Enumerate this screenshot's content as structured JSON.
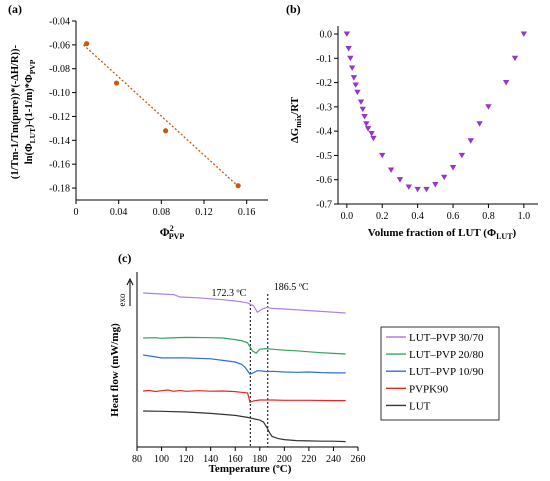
{
  "chart_data": [
    {
      "panel": "(a)",
      "type": "scatter",
      "ylabel_line1": "(1/Tm-1/Tm(pure))*(-ΔH/R))-",
      "ylabel_line2_main": "ln(Φ",
      "ylabel_line2_sub1": "LUT",
      "ylabel_line2_mid": ")-(1-1/m)*Φ",
      "ylabel_line2_sub2": "PVP",
      "xlabel_main": "Φ",
      "xlabel_sup": "2",
      "xlabel_sub": "PVP",
      "xlim": [
        0,
        0.18
      ],
      "ylim": [
        -0.19,
        -0.04
      ],
      "x_ticks": [
        "0",
        "0.04",
        "0.08",
        "0.12",
        "0.16"
      ],
      "x_tick_values": [
        0,
        0.04,
        0.08,
        0.12,
        0.16
      ],
      "y_ticks": [
        "-0.04",
        "-0.06",
        "-0.08",
        "-0.10",
        "-0.12",
        "-0.14",
        "-0.16",
        "-0.18"
      ],
      "y_tick_values": [
        -0.04,
        -0.06,
        -0.08,
        -0.1,
        -0.12,
        -0.14,
        -0.16,
        -0.18
      ],
      "points": [
        {
          "x": 0.01,
          "y": -0.059
        },
        {
          "x": 0.038,
          "y": -0.092
        },
        {
          "x": 0.084,
          "y": -0.132
        },
        {
          "x": 0.152,
          "y": -0.178
        }
      ],
      "trendline": {
        "x": [
          0.007,
          0.152
        ],
        "y": [
          -0.06,
          -0.1785
        ]
      },
      "marker_color": "#c55a11",
      "trend_color": "#c55a11"
    },
    {
      "panel": "(b)",
      "type": "scatter",
      "ylabel_main": "ΔG",
      "ylabel_sub": "mix",
      "ylabel_tail": "/RT",
      "xlabel_main": "Volume fraction of LUT (Φ",
      "xlabel_sub": "LUT",
      "xlabel_tail": ")",
      "xlim": [
        -0.05,
        1.08
      ],
      "ylim": [
        -0.7,
        0.0
      ],
      "x_ticks": [
        "0.0",
        "0.2",
        "0.4",
        "0.6",
        "0.8",
        "1.0"
      ],
      "x_tick_values": [
        0.0,
        0.2,
        0.4,
        0.6,
        0.8,
        1.0
      ],
      "y_ticks": [
        "0.0",
        "-0.1",
        "-0.2",
        "-0.3",
        "-0.4",
        "-0.5",
        "-0.6",
        "-0.7"
      ],
      "y_tick_values": [
        0.0,
        -0.1,
        -0.2,
        -0.3,
        -0.4,
        -0.5,
        -0.6,
        -0.7
      ],
      "points": [
        {
          "x": 0.0,
          "y": 0.0
        },
        {
          "x": 0.01,
          "y": -0.06
        },
        {
          "x": 0.02,
          "y": -0.1
        },
        {
          "x": 0.03,
          "y": -0.14
        },
        {
          "x": 0.04,
          "y": -0.18
        },
        {
          "x": 0.05,
          "y": -0.21
        },
        {
          "x": 0.06,
          "y": -0.24
        },
        {
          "x": 0.08,
          "y": -0.28
        },
        {
          "x": 0.09,
          "y": -0.31
        },
        {
          "x": 0.1,
          "y": -0.34
        },
        {
          "x": 0.11,
          "y": -0.37
        },
        {
          "x": 0.12,
          "y": -0.39
        },
        {
          "x": 0.14,
          "y": -0.41
        },
        {
          "x": 0.15,
          "y": -0.43
        },
        {
          "x": 0.2,
          "y": -0.5
        },
        {
          "x": 0.25,
          "y": -0.56
        },
        {
          "x": 0.3,
          "y": -0.6
        },
        {
          "x": 0.35,
          "y": -0.63
        },
        {
          "x": 0.4,
          "y": -0.64
        },
        {
          "x": 0.45,
          "y": -0.64
        },
        {
          "x": 0.5,
          "y": -0.62
        },
        {
          "x": 0.55,
          "y": -0.59
        },
        {
          "x": 0.6,
          "y": -0.55
        },
        {
          "x": 0.65,
          "y": -0.5
        },
        {
          "x": 0.7,
          "y": -0.44
        },
        {
          "x": 0.75,
          "y": -0.37
        },
        {
          "x": 0.8,
          "y": -0.3
        },
        {
          "x": 0.9,
          "y": -0.2
        },
        {
          "x": 0.95,
          "y": -0.1
        },
        {
          "x": 1.0,
          "y": 0.0
        }
      ],
      "marker_color": "#9933cc"
    },
    {
      "panel": "(c)",
      "type": "line",
      "ylabel": "Heat flow (mW/mg)",
      "exo_label": "exo",
      "xlabel": "Temperature (ºC)",
      "xlim": [
        80,
        260
      ],
      "x_ticks": [
        "80",
        "100",
        "120",
        "140",
        "160",
        "180",
        "200",
        "220",
        "240",
        "260"
      ],
      "x_tick_values": [
        80,
        100,
        120,
        140,
        160,
        180,
        200,
        220,
        240,
        260
      ],
      "annotations": [
        {
          "text": "172.3 ºC",
          "x": 172.3
        },
        {
          "text": "186.5 ºC",
          "x": 186.5
        }
      ],
      "series": [
        {
          "name": "LUT–PVP 30/70",
          "color": "#b07fe0",
          "offset": 4,
          "x": [
            85,
            100,
            110,
            115,
            130,
            140,
            150,
            160,
            165,
            170,
            175,
            178,
            182,
            186,
            190,
            200,
            210,
            220,
            230,
            240,
            250
          ],
          "y": [
            0.0,
            -0.6,
            -1.0,
            -2.5,
            -3.0,
            -3.6,
            -4.2,
            -5.0,
            -5.5,
            -6.2,
            -8.0,
            -12.0,
            -10.0,
            -9.0,
            -9.6,
            -10.0,
            -10.5,
            -11.0,
            -11.5,
            -12.0,
            -12.5
          ]
        },
        {
          "name": "LUT–PVP 20/80",
          "color": "#33a35c",
          "offset": 3,
          "x": [
            85,
            95,
            100,
            105,
            120,
            140,
            150,
            160,
            165,
            170,
            174,
            177,
            180,
            185,
            190,
            200,
            210,
            220,
            230,
            240,
            250
          ],
          "y": [
            0.0,
            0.2,
            -0.2,
            0.0,
            0.4,
            0.2,
            0.0,
            -1.0,
            -1.6,
            -3.0,
            -8.0,
            -9.5,
            -7.0,
            -6.6,
            -7.0,
            -7.6,
            -8.0,
            -8.6,
            -9.2,
            -9.6,
            -10.0
          ]
        },
        {
          "name": "LUT–PVP 10/90",
          "color": "#2e6fd8",
          "offset": 2,
          "x": [
            85,
            100,
            120,
            140,
            150,
            160,
            165,
            168,
            172,
            175,
            178,
            182,
            186,
            190,
            200,
            210,
            220,
            230,
            240,
            250
          ],
          "y": [
            0.0,
            -1.8,
            -1.8,
            -2.4,
            -3.4,
            -4.4,
            -5.8,
            -7.6,
            -12.0,
            -11.0,
            -9.8,
            -10.0,
            -10.4,
            -10.2,
            -10.6,
            -10.8,
            -10.6,
            -11.0,
            -11.2,
            -11.2
          ]
        },
        {
          "name": "PVPK90",
          "color": "#e52828",
          "offset": 1,
          "x": [
            85,
            90,
            95,
            100,
            105,
            110,
            115,
            120,
            130,
            140,
            150,
            160,
            165,
            170,
            172,
            175,
            180,
            190,
            200,
            220,
            240,
            250
          ],
          "y": [
            0.0,
            0.3,
            -0.3,
            0.2,
            0.6,
            -0.2,
            0.3,
            -0.2,
            0.2,
            -0.1,
            0.0,
            -0.4,
            -0.8,
            -1.2,
            -7.0,
            -6.2,
            -5.6,
            -5.6,
            -5.8,
            -5.8,
            -6.0,
            -6.0
          ]
        },
        {
          "name": "LUT",
          "color": "#333333",
          "offset": 0,
          "x": [
            85,
            100,
            120,
            140,
            150,
            160,
            170,
            180,
            183,
            186,
            188,
            190,
            195,
            200,
            210,
            220,
            230,
            240,
            250
          ],
          "y": [
            0.0,
            -0.2,
            -0.6,
            -1.4,
            -2.0,
            -2.6,
            -3.8,
            -5.4,
            -6.6,
            -10.0,
            -13.0,
            -15.2,
            -16.4,
            -17.0,
            -17.6,
            -17.8,
            -18.0,
            -18.0,
            -18.2
          ]
        }
      ],
      "series_spacing": 19
    }
  ]
}
